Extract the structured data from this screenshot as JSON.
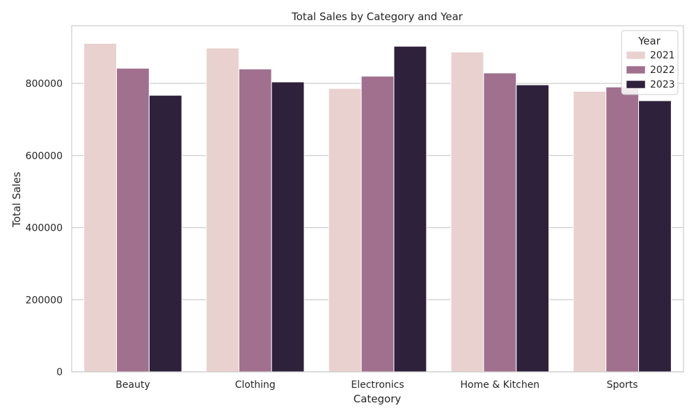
{
  "chart_data": {
    "type": "bar",
    "title": "Total Sales by Category and Year",
    "xlabel": "Category",
    "ylabel": "Total Sales",
    "categories": [
      "Beauty",
      "Clothing",
      "Electronics",
      "Home & Kitchen",
      "Sports"
    ],
    "ylim": [
      0,
      960000
    ],
    "yticks": [
      0,
      200000,
      400000,
      600000,
      800000
    ],
    "ytick_labels": [
      "0",
      "200000",
      "400000",
      "600000",
      "800000"
    ],
    "grid": true,
    "legend": {
      "title": "Year",
      "position": "top-right"
    },
    "series": [
      {
        "name": "2021",
        "color": "#e8d1ce",
        "values": [
          911000,
          898000,
          786000,
          887000,
          778000
        ]
      },
      {
        "name": "2022",
        "color": "#a0708e",
        "values": [
          842000,
          840000,
          820000,
          829000,
          790000
        ]
      },
      {
        "name": "2023",
        "color": "#2e213c",
        "values": [
          767000,
          804000,
          903000,
          796000,
          752000
        ]
      }
    ]
  }
}
